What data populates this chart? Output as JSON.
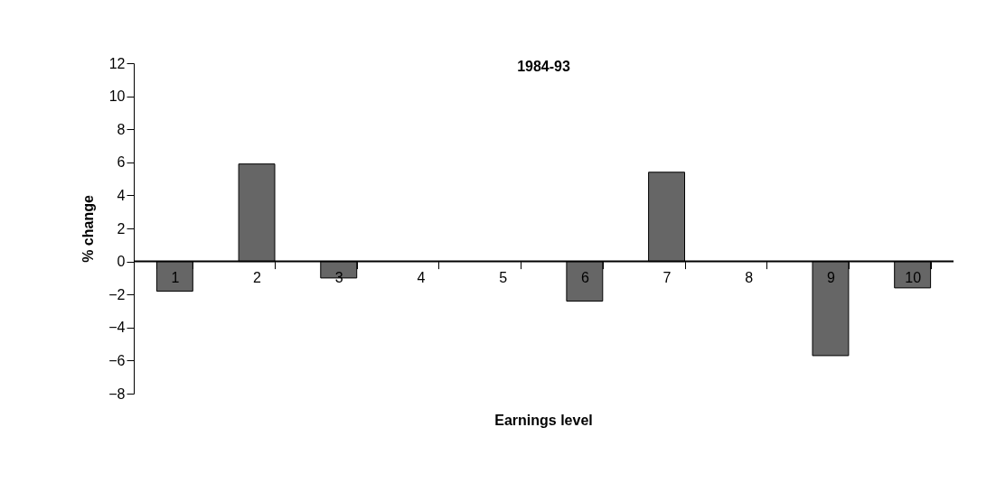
{
  "chart_data": {
    "type": "bar",
    "title": "1984-93",
    "xlabel": "Earnings level",
    "ylabel": "% change",
    "categories": [
      "1",
      "2",
      "3",
      "4",
      "5",
      "6",
      "7",
      "8",
      "9",
      "10"
    ],
    "values": [
      -1.8,
      5.9,
      -1.0,
      0,
      0,
      -2.4,
      5.4,
      0,
      -5.7,
      -1.6
    ],
    "color": "#666666",
    "ylim": [
      -8,
      12
    ],
    "yticks": [
      -8,
      -6,
      -4,
      -2,
      0,
      2,
      4,
      6,
      8,
      10,
      12
    ],
    "grid": false
  }
}
